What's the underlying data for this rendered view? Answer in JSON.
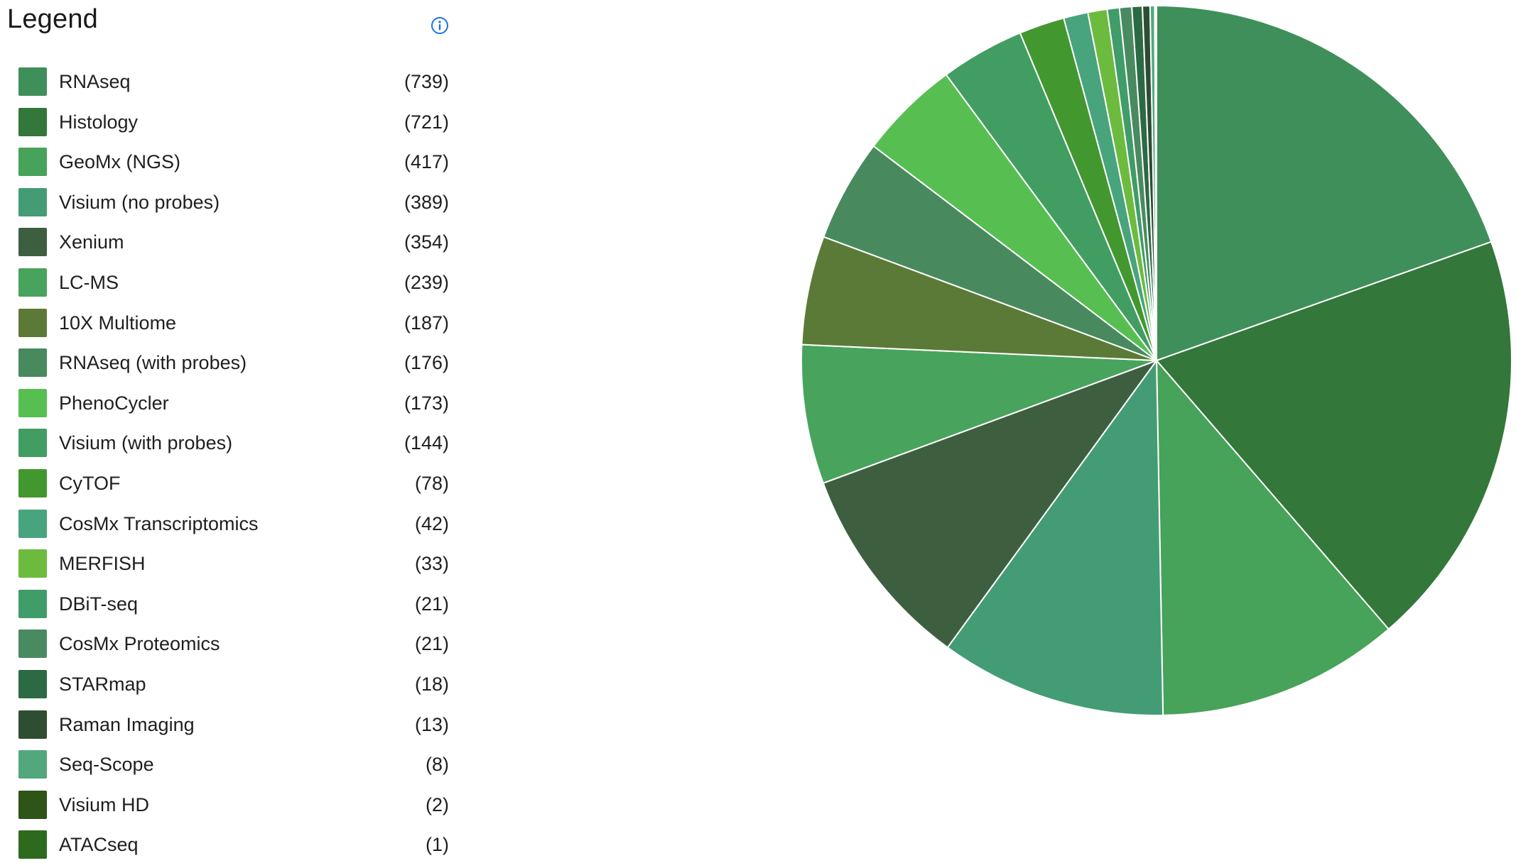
{
  "legend": {
    "title": "Legend",
    "info_icon": "info-circle-icon"
  },
  "colors": {
    "info_icon": "#1a73e8",
    "slice_border": "#ffffff"
  },
  "chart_data": {
    "type": "pie",
    "title": "",
    "legend_position": "left",
    "slices": [
      {
        "label": "RNAseq",
        "count_label": "(739)",
        "value": 739,
        "color": "#3f8f5a"
      },
      {
        "label": "Histology",
        "count_label": "(721)",
        "value": 721,
        "color": "#33773a"
      },
      {
        "label": "GeoMx (NGS)",
        "count_label": "(417)",
        "value": 417,
        "color": "#47a25a"
      },
      {
        "label": "Visium (no probes)",
        "count_label": "(389)",
        "value": 389,
        "color": "#449c74"
      },
      {
        "label": "Xenium",
        "count_label": "(354)",
        "value": 354,
        "color": "#3e5e40"
      },
      {
        "label": "LC-MS",
        "count_label": "(239)",
        "value": 239,
        "color": "#48a35c"
      },
      {
        "label": "10X Multiome",
        "count_label": "(187)",
        "value": 187,
        "color": "#5c7a37"
      },
      {
        "label": "RNAseq (with probes)",
        "count_label": "(176)",
        "value": 176,
        "color": "#488a5e"
      },
      {
        "label": "PhenoCycler",
        "count_label": "(173)",
        "value": 173,
        "color": "#57bf52"
      },
      {
        "label": "Visium (with probes)",
        "count_label": "(144)",
        "value": 144,
        "color": "#429d62"
      },
      {
        "label": "CyTOF",
        "count_label": "(78)",
        "value": 78,
        "color": "#42982e"
      },
      {
        "label": "CosMx Transcriptomics",
        "count_label": "(42)",
        "value": 42,
        "color": "#48a47c"
      },
      {
        "label": "MERFISH",
        "count_label": "(33)",
        "value": 33,
        "color": "#6cbb3e"
      },
      {
        "label": "DBiT-seq",
        "count_label": "(21)",
        "value": 21,
        "color": "#409c68"
      },
      {
        "label": "CosMx Proteomics",
        "count_label": "(21)",
        "value": 21,
        "color": "#4a8a60"
      },
      {
        "label": "STARmap",
        "count_label": "(18)",
        "value": 18,
        "color": "#2c6a44"
      },
      {
        "label": "Raman Imaging",
        "count_label": "(13)",
        "value": 13,
        "color": "#2e4d32"
      },
      {
        "label": "Seq-Scope",
        "count_label": "(8)",
        "value": 8,
        "color": "#52a87c"
      },
      {
        "label": "Visium HD",
        "count_label": "(2)",
        "value": 2,
        "color": "#2e5418"
      },
      {
        "label": "ATACseq",
        "count_label": "(1)",
        "value": 1,
        "color": "#2d6a1e"
      }
    ]
  }
}
